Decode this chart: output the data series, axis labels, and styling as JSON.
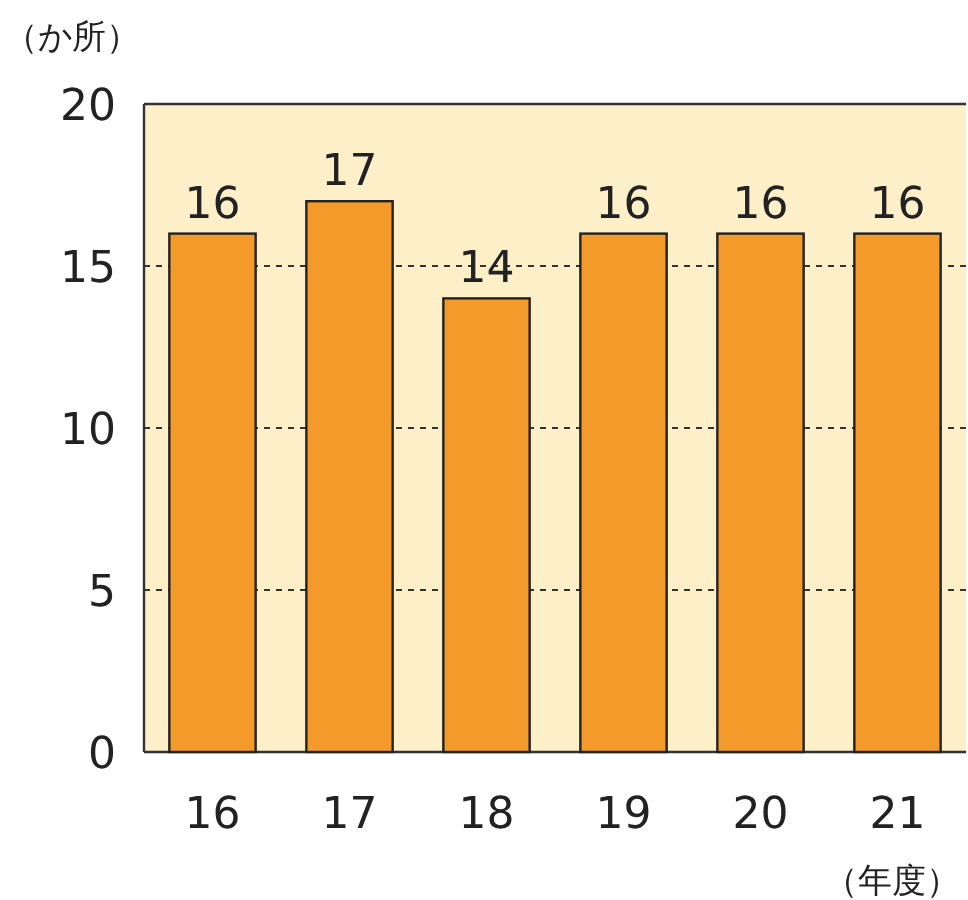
{
  "chart_data": {
    "type": "bar",
    "categories": [
      "16",
      "17",
      "18",
      "19",
      "20",
      "21"
    ],
    "values": [
      16,
      17,
      14,
      16,
      16,
      16
    ],
    "color": "#f39a2b",
    "bands": [
      {
        "axis": "y",
        "from": 0,
        "to": 20,
        "color": "#fdf0c8"
      }
    ],
    "ylim": [
      0,
      20
    ],
    "yticks": [
      0,
      5,
      10,
      15,
      20
    ],
    "grid": "y",
    "data_labels": true,
    "ylabel": "（か所）",
    "xlabel": "（年度）"
  }
}
